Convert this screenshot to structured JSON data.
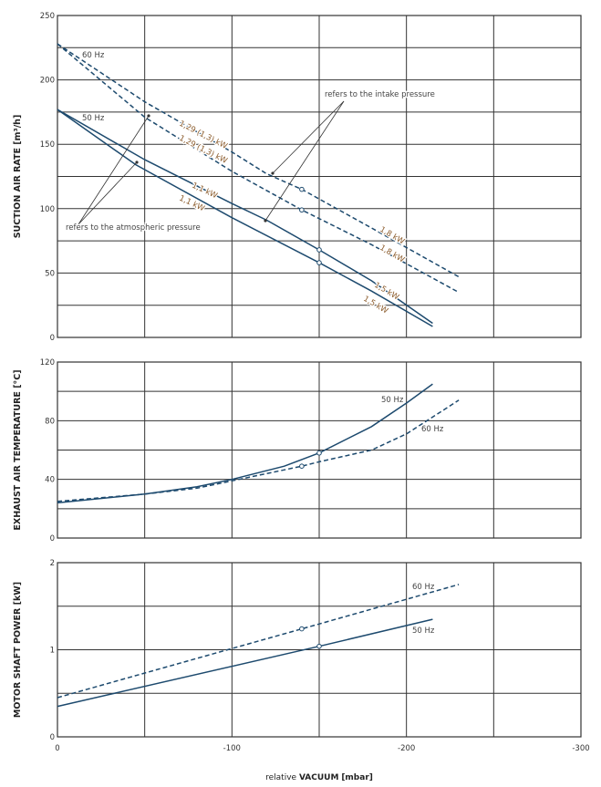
{
  "chart_data": [
    {
      "type": "line",
      "title": "",
      "ylabel": "SUCTION AIR RATE [m³/h]",
      "ylim": [
        0,
        250
      ],
      "yticks": [
        0,
        50,
        100,
        150,
        200,
        250
      ],
      "ygrid_step": 25,
      "series": [
        {
          "name": "60 Hz (refers to the intake pressure)",
          "style": "dashed",
          "x": [
            0,
            -50,
            -100,
            -120,
            -140,
            -180,
            -230
          ],
          "y": [
            228,
            183,
            144,
            127,
            115,
            85,
            47
          ],
          "marker_x": -140
        },
        {
          "name": "60 Hz (refers to the atmospheric pressure)",
          "style": "dashed",
          "x": [
            0,
            -50,
            -100,
            -140,
            -180,
            -230
          ],
          "y": [
            228,
            171,
            129,
            99,
            72,
            35
          ],
          "marker_x": -140
        },
        {
          "name": "50 Hz (refers to the intake pressure)",
          "style": "solid",
          "x": [
            0,
            -50,
            -100,
            -120,
            -150,
            -180,
            -215
          ],
          "y": [
            177,
            138,
            104,
            91,
            68,
            44,
            11
          ],
          "marker_x": -150
        },
        {
          "name": "50 Hz (refers to the atmospheric pressure)",
          "style": "solid",
          "x": [
            0,
            -45,
            -100,
            -150,
            -180,
            -215
          ],
          "y": [
            177,
            134,
            93,
            58,
            36,
            8.5
          ],
          "marker_x": -150
        }
      ],
      "annotations": [
        "60 Hz",
        "50 Hz",
        "refers to the intake pressure",
        "refers to the atmospheric pressure",
        "1,29 (1,3) kW",
        "1,29 (1,3) kW",
        "1,1 kW",
        "1,1 kW",
        "1,8 kW",
        "1,8 kW",
        "1,5 kW",
        "1,5 kW"
      ]
    },
    {
      "type": "line",
      "ylabel": "EXHAUST AIR TEMPERATURE [°C]",
      "ylim": [
        0,
        120
      ],
      "yticks": [
        0,
        40,
        80,
        120
      ],
      "ygrid_step": 20,
      "series": [
        {
          "name": "50 Hz",
          "style": "solid",
          "x": [
            0,
            -50,
            -80,
            -100,
            -130,
            -150,
            -180,
            -200,
            -215
          ],
          "y": [
            24,
            30,
            35,
            40,
            49,
            58,
            76,
            92,
            105
          ],
          "marker_x": -150
        },
        {
          "name": "60 Hz",
          "style": "dashed",
          "x": [
            0,
            -50,
            -80,
            -100,
            -140,
            -150,
            -180,
            -200,
            -230
          ],
          "y": [
            25,
            30,
            34,
            39,
            49,
            52,
            60,
            71,
            94
          ],
          "marker_x": -140
        }
      ],
      "annotations": [
        "50 Hz",
        "60 Hz"
      ]
    },
    {
      "type": "line",
      "ylabel": "MOTOR SHAFT POWER [kW]",
      "ylim": [
        0,
        2
      ],
      "yticks": [
        0,
        1,
        2
      ],
      "ygrid_step": 0.5,
      "series": [
        {
          "name": "60 Hz",
          "style": "dashed",
          "x": [
            0,
            -140,
            -230
          ],
          "y": [
            0.45,
            1.24,
            1.75
          ],
          "marker_x": -140
        },
        {
          "name": "50 Hz",
          "style": "solid",
          "x": [
            0,
            -150,
            -215
          ],
          "y": [
            0.35,
            1.04,
            1.35
          ],
          "marker_x": -150
        }
      ],
      "annotations": [
        "60 Hz",
        "50 Hz"
      ]
    }
  ],
  "xaxis": {
    "xlim": [
      0,
      -300
    ],
    "xticks": [
      0,
      -100,
      -200,
      -300
    ],
    "xgrid_step": 50,
    "label_prefix": "relative",
    "label_bold": "VACUUM",
    "label_unit": "[mbar]"
  },
  "colors": {
    "line": "#1d4a6e",
    "grid": "#333333",
    "kw_label": "#8a5a2a"
  }
}
